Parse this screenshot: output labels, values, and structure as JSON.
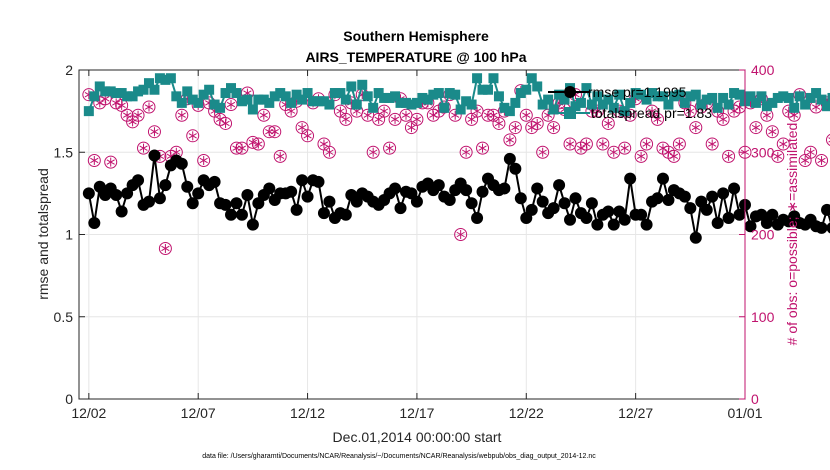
{
  "chart_data": {
    "type": "line",
    "title": [
      "Southern Hemisphere",
      "AIRS_TEMPERATURE @ 100 hPa"
    ],
    "xlabel": "Dec.01,2014 00:00:00 start",
    "ylabel": "rmse and totalspread",
    "ylabel_right": "# of obs: o=possible; ∗=assimilated",
    "x_ticks": [
      "12/02",
      "12/07",
      "12/12",
      "12/17",
      "12/22",
      "12/27",
      "01/01"
    ],
    "x_tick_days": [
      1,
      6,
      11,
      16,
      21,
      26,
      31
    ],
    "xlim_days": [
      0.55,
      31
    ],
    "ylim": [
      0,
      2
    ],
    "y_ticks": [
      "0",
      "0.5",
      "1",
      "1.5",
      "2"
    ],
    "ylim_right": [
      0,
      400
    ],
    "y_ticks_right": [
      "0",
      "100",
      "200",
      "300",
      "400"
    ],
    "grid": true,
    "legend_position": "top-right",
    "series": [
      {
        "name": "rmse     pr=1.1995",
        "axis": "left",
        "color": "#000000",
        "marker": "filled-circle",
        "values": [
          1.25,
          1.07,
          1.29,
          1.24,
          1.28,
          1.24,
          1.14,
          1.25,
          1.3,
          1.33,
          1.18,
          1.2,
          1.48,
          1.22,
          1.3,
          1.42,
          1.45,
          1.43,
          1.29,
          1.19,
          1.25,
          1.33,
          1.3,
          1.32,
          1.19,
          1.18,
          1.12,
          1.19,
          1.12,
          1.24,
          1.06,
          1.19,
          1.24,
          1.28,
          1.21,
          1.25,
          1.25,
          1.26,
          1.15,
          1.33,
          1.23,
          1.33,
          1.32,
          1.13,
          1.2,
          1.1,
          1.13,
          1.12,
          1.24,
          1.2,
          1.25,
          1.23,
          1.2,
          1.18,
          1.21,
          1.25,
          1.28,
          1.16,
          1.26,
          1.25,
          1.2,
          1.29,
          1.31,
          1.27,
          1.3,
          1.23,
          1.21,
          1.27,
          1.31,
          1.27,
          1.19,
          1.1,
          1.26,
          1.34,
          1.3,
          1.27,
          1.28,
          1.46,
          1.4,
          1.22,
          1.1,
          1.15,
          1.28,
          1.2,
          1.13,
          1.16,
          1.3,
          1.19,
          1.09,
          1.22,
          1.13,
          1.1,
          1.19,
          1.06,
          1.12,
          1.14,
          1.06,
          1.14,
          1.09,
          1.34,
          1.12,
          1.12,
          1.06,
          1.2,
          1.22,
          1.34,
          1.21,
          1.27,
          1.25,
          1.23,
          1.16,
          0.98,
          1.2,
          1.15,
          1.23,
          1.07,
          1.25,
          1.1,
          1.28,
          1.12,
          1.18,
          1.05,
          1.11,
          1.12,
          1.07,
          1.12,
          1.06,
          1.09,
          1.08,
          1.11,
          1.07,
          1.06,
          1.09,
          1.05,
          1.04,
          1.15,
          1.04,
          1.17,
          1.03,
          0.98,
          1.03,
          0.98,
          1.06
        ]
      },
      {
        "name": "totalspread pr=1.83",
        "axis": "left",
        "color": "#1a8a8a",
        "marker": "filled-square",
        "values": [
          1.75,
          1.84,
          1.9,
          1.87,
          1.87,
          1.86,
          1.86,
          1.84,
          1.84,
          1.87,
          1.88,
          1.92,
          1.88,
          1.95,
          1.94,
          1.95,
          1.84,
          1.8,
          1.87,
          1.82,
          1.8,
          1.85,
          1.88,
          1.79,
          1.77,
          1.86,
          1.89,
          1.86,
          1.81,
          1.82,
          1.76,
          1.82,
          1.82,
          1.8,
          1.84,
          1.86,
          1.84,
          1.8,
          1.85,
          1.82,
          1.86,
          1.81,
          1.81,
          1.81,
          1.79,
          1.86,
          1.86,
          1.82,
          1.9,
          1.79,
          1.91,
          1.84,
          1.77,
          1.86,
          1.83,
          1.83,
          1.84,
          1.8,
          1.8,
          1.79,
          1.8,
          1.83,
          1.82,
          1.85,
          1.86,
          1.77,
          1.86,
          1.85,
          1.76,
          1.81,
          1.79,
          1.95,
          1.88,
          1.88,
          1.95,
          1.84,
          1.77,
          1.75,
          1.8,
          1.86,
          1.88,
          1.95,
          1.9,
          1.79,
          1.82,
          1.76,
          1.85,
          1.82,
          1.89,
          1.78,
          1.8,
          1.89,
          1.79,
          1.84,
          1.79,
          1.82,
          1.77,
          1.85,
          1.75,
          1.8,
          1.86,
          1.85,
          1.82,
          1.86,
          1.84,
          1.84,
          1.79,
          1.84,
          1.85,
          1.8,
          1.84,
          1.85,
          1.79,
          1.82,
          1.83,
          1.77,
          1.83,
          1.79,
          1.86,
          1.85,
          1.81,
          1.84,
          1.8,
          1.84,
          1.78,
          1.8,
          1.83,
          1.84,
          1.83,
          1.77,
          1.84,
          1.79,
          1.83,
          1.86,
          1.82,
          1.78,
          1.83,
          1.8,
          1.77,
          1.76,
          1.77
        ]
      },
      {
        "name": "possible",
        "axis": "right",
        "color": "#c0136e",
        "marker": "open-circle",
        "values": [
          370,
          290,
          360,
          365,
          288,
          360,
          357,
          345,
          337,
          345,
          305,
          355,
          325,
          295,
          183,
          295,
          300,
          345,
          365,
          320,
          357,
          290,
          360,
          350,
          340,
          335,
          358,
          305,
          305,
          372,
          312,
          310,
          345,
          325,
          325,
          295,
          358,
          350,
          362,
          330,
          320,
          360,
          365,
          310,
          300,
          370,
          350,
          340,
          360,
          350,
          370,
          345,
          300,
          340,
          350,
          305,
          340,
          365,
          345,
          330,
          340,
          360,
          360,
          345,
          350,
          355,
          370,
          345,
          200,
          300,
          340,
          350,
          305,
          345,
          345,
          335,
          350,
          315,
          330,
          375,
          345,
          330,
          335,
          300,
          345,
          330,
          360,
          352,
          310,
          370,
          305,
          310,
          350,
          350,
          310,
          335,
          300,
          350,
          305,
          345,
          365,
          295,
          310,
          350,
          340,
          305,
          300,
          295,
          310,
          360,
          350,
          330,
          355,
          360,
          310,
          350,
          340,
          295,
          350,
          355,
          300,
          360,
          330,
          365,
          345,
          325,
          295,
          310,
          350,
          345,
          370,
          290,
          300,
          355,
          290,
          360,
          315,
          300,
          310,
          375,
          0
        ]
      }
    ],
    "footnote": "data file: /Users/gharamti/Documents/NCAR/Reanalysis/~/Documents/NCAR/Reanalysis/webpub/obs_diag_output_2014-12.nc"
  }
}
